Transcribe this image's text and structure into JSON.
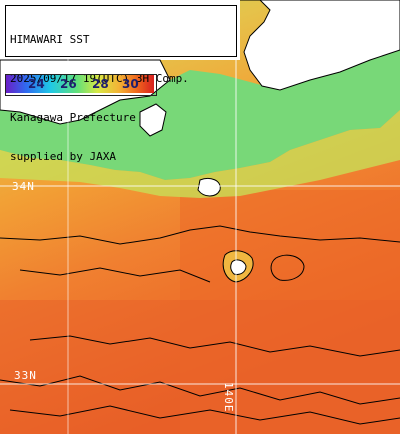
{
  "header": {
    "line1": "HIMAWARI SST",
    "line2": "2025/09/17 19(UTC) 3H Comp.",
    "line3": "Kanagawa Prefecture",
    "line4": "supplied by JAXA"
  },
  "legend": {
    "ticks": [
      "24",
      "26",
      "28",
      "30"
    ],
    "colors": [
      "#6a1fc8",
      "#2e6cf0",
      "#1fc8e6",
      "#62e07a",
      "#d8e845",
      "#f3b436",
      "#f06a1e",
      "#d81f1f"
    ]
  },
  "grid_labels": {
    "lat_34": "34N",
    "lat_33": "33N",
    "lon_140": "140E"
  },
  "colors": {
    "land": "#ffffff",
    "cool_water": "#6fd87a",
    "warm_water": "#f0a030",
    "hot_water": "#ec6a28",
    "grid": "#ffffff",
    "coast_outline": "#000000"
  }
}
